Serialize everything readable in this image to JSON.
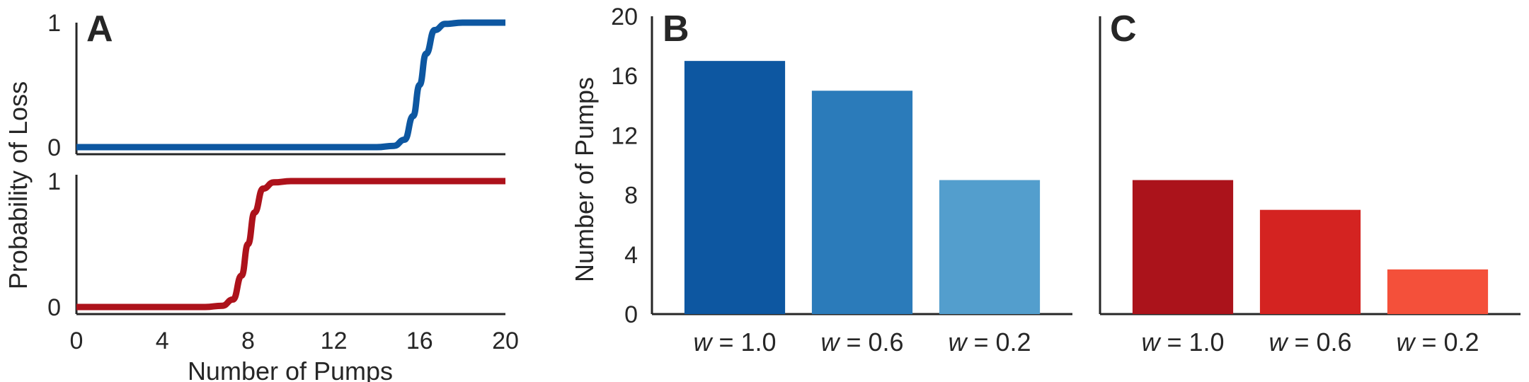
{
  "chart_data": [
    {
      "panel": "A",
      "type": "line",
      "subplots": [
        {
          "series": [
            {
              "color": "#0d57a1",
              "x": [
                0,
                14,
                14.8,
                15.3,
                15.7,
                16.0,
                16.3,
                16.7,
                17.2,
                18,
                20
              ],
              "y": [
                0,
                0,
                0.01,
                0.06,
                0.25,
                0.5,
                0.75,
                0.94,
                0.99,
                1,
                1
              ]
            }
          ],
          "yticks": [
            "0",
            "1"
          ],
          "ylim": [
            0,
            1
          ]
        },
        {
          "series": [
            {
              "color": "#ad121b",
              "x": [
                0,
                6,
                6.8,
                7.3,
                7.7,
                8.0,
                8.3,
                8.7,
                9.2,
                10,
                20
              ],
              "y": [
                0,
                0,
                0.01,
                0.06,
                0.25,
                0.5,
                0.75,
                0.94,
                0.99,
                1,
                1
              ]
            }
          ],
          "yticks": [
            "0",
            "1"
          ],
          "ylim": [
            0,
            1
          ]
        }
      ],
      "xticks": [
        "0",
        "4",
        "8",
        "12",
        "16",
        "20"
      ],
      "xlim": [
        0,
        20
      ],
      "xlabel": "Number of Pumps",
      "ylabel": "Probability of Loss"
    },
    {
      "panel": "B",
      "type": "bar",
      "categories": [
        "w = 1.0",
        "w = 0.6",
        "w = 0.2"
      ],
      "values": [
        17,
        15,
        9
      ],
      "colors": [
        "#0d57a1",
        "#2b7bba",
        "#539ecd"
      ],
      "ylabel": "Number of Pumps",
      "yticks": [
        "0",
        "4",
        "8",
        "12",
        "16",
        "20"
      ],
      "ylim": [
        0,
        20
      ]
    },
    {
      "panel": "C",
      "type": "bar",
      "categories": [
        "w = 1.0",
        "w = 0.6",
        "w = 0.2"
      ],
      "values": [
        9,
        7,
        3
      ],
      "colors": [
        "#ab131b",
        "#d42321",
        "#f4503a"
      ],
      "ylim": [
        0,
        20
      ]
    }
  ]
}
